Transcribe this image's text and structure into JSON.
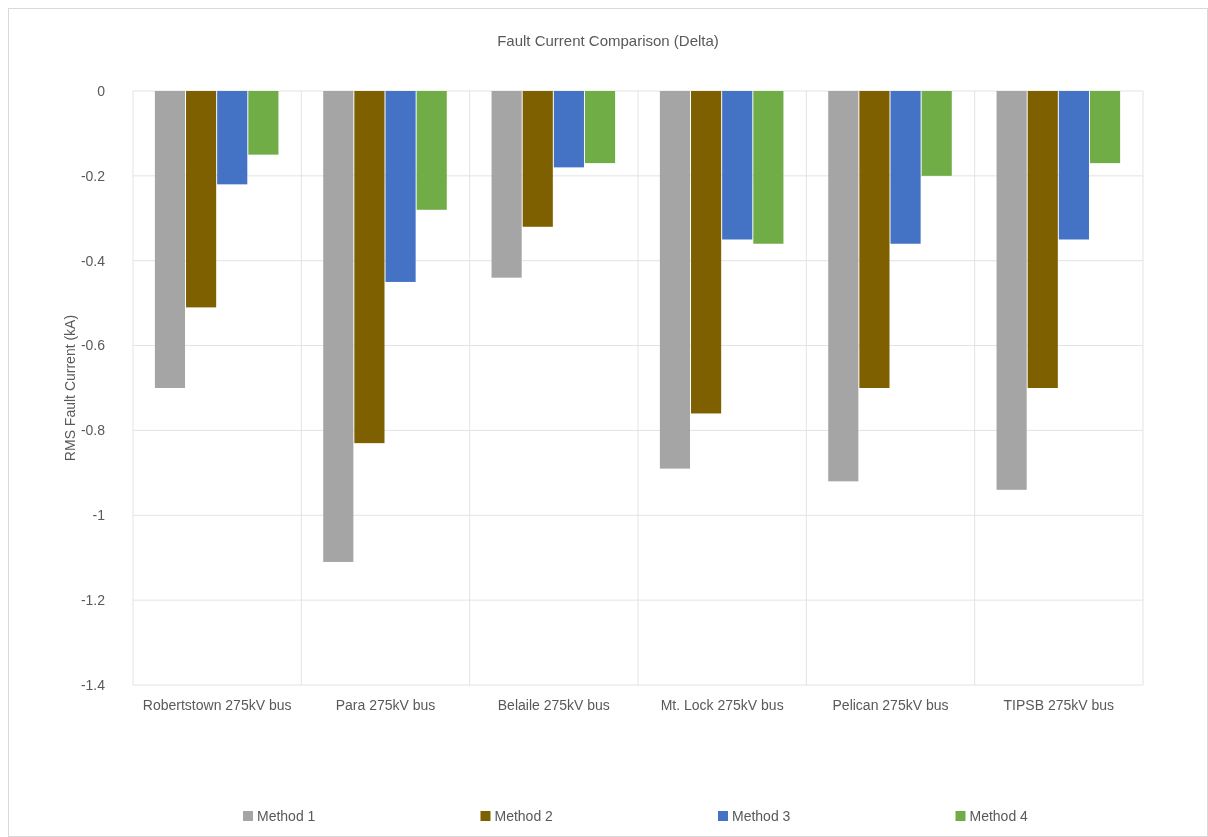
{
  "chart_data": {
    "type": "bar",
    "title": "Fault Current Comparison (Delta)",
    "ylabel": "RMS Fault Current (kA)",
    "categories": [
      "Robertstown 275kV bus",
      "Para 275kV bus",
      "Belaile 275kV bus",
      "Mt. Lock 275kV bus",
      "Pelican 275kV bus",
      "TIPSB 275kV bus"
    ],
    "series": [
      {
        "name": "Method 1",
        "color": "#a5a5a5",
        "values": [
          -0.7,
          -1.11,
          -0.44,
          -0.89,
          -0.92,
          -0.94
        ]
      },
      {
        "name": "Method 2",
        "color": "#7f6000",
        "values": [
          -0.51,
          -0.83,
          -0.32,
          -0.76,
          -0.7,
          -0.7
        ]
      },
      {
        "name": "Method 3",
        "color": "#4472c4",
        "values": [
          -0.22,
          -0.45,
          -0.18,
          -0.35,
          -0.36,
          -0.35
        ]
      },
      {
        "name": "Method 4",
        "color": "#70ad47",
        "values": [
          -0.15,
          -0.28,
          -0.17,
          -0.36,
          -0.2,
          -0.17
        ]
      }
    ],
    "ylim": [
      -1.4,
      0
    ],
    "yticks": [
      -1.4,
      -1.2,
      -1,
      -0.8,
      -0.6,
      -0.4,
      -0.2,
      0
    ],
    "grid": true,
    "legend": "bottom"
  }
}
